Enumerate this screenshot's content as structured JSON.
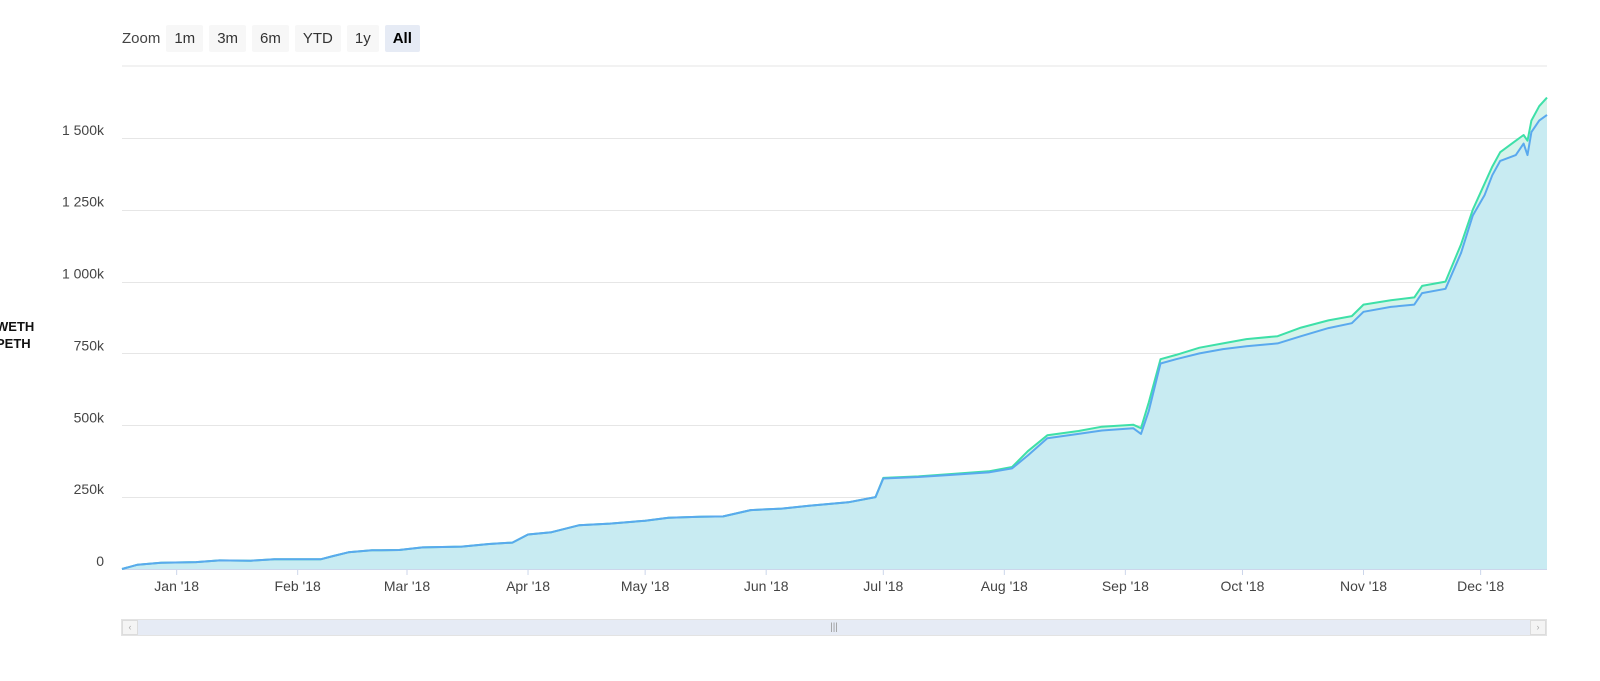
{
  "zoom": {
    "label": "Zoom",
    "buttons": [
      "1m",
      "3m",
      "6m",
      "YTD",
      "1y",
      "All"
    ],
    "active": "All"
  },
  "legend": [
    "WETH",
    "PETH"
  ],
  "navigator": {
    "left_arrow": "‹",
    "right_arrow": "›",
    "grip": "|||"
  },
  "colors": {
    "weth_line": "#3ee0a8",
    "peth_line": "#5aa9ee",
    "area_fill": "#c8ebf2",
    "gap_fill": "#d5f3ea",
    "grid": "#e6e6e6"
  },
  "chart_data": {
    "type": "area",
    "x_axis_type": "datetime",
    "ylim": [
      0,
      1750000
    ],
    "y_ticks": [
      0,
      250000,
      500000,
      750000,
      1000000,
      1250000,
      1500000
    ],
    "y_tick_labels": [
      "0",
      "250k",
      "500k",
      "750k",
      "1 000k",
      "1 250k",
      "1 500k"
    ],
    "x_ticks": [
      "2018-01-01",
      "2018-02-01",
      "2018-03-01",
      "2018-04-01",
      "2018-05-01",
      "2018-06-01",
      "2018-07-01",
      "2018-08-01",
      "2018-09-01",
      "2018-10-01",
      "2018-11-01",
      "2018-12-01"
    ],
    "x_tick_labels": [
      "Jan '18",
      "Feb '18",
      "Mar '18",
      "Apr '18",
      "May '18",
      "Jun '18",
      "Jul '18",
      "Aug '18",
      "Sep '18",
      "Oct '18",
      "Nov '18",
      "Dec '18"
    ],
    "x_range": [
      "2017-12-18",
      "2018-12-18"
    ],
    "grid": true,
    "series": [
      {
        "name": "WETH",
        "points": [
          [
            "2017-12-18",
            0
          ],
          [
            "2017-12-22",
            15000
          ],
          [
            "2017-12-28",
            22000
          ],
          [
            "2018-01-06",
            24000
          ],
          [
            "2018-01-12",
            30000
          ],
          [
            "2018-01-20",
            29000
          ],
          [
            "2018-01-26",
            34000
          ],
          [
            "2018-02-07",
            34000
          ],
          [
            "2018-02-10",
            45000
          ],
          [
            "2018-02-14",
            58000
          ],
          [
            "2018-02-20",
            65000
          ],
          [
            "2018-02-27",
            66000
          ],
          [
            "2018-03-05",
            75000
          ],
          [
            "2018-03-15",
            78000
          ],
          [
            "2018-03-22",
            87000
          ],
          [
            "2018-03-28",
            92000
          ],
          [
            "2018-04-01",
            120000
          ],
          [
            "2018-04-07",
            128000
          ],
          [
            "2018-04-14",
            152000
          ],
          [
            "2018-04-22",
            158000
          ],
          [
            "2018-05-01",
            168000
          ],
          [
            "2018-05-07",
            178000
          ],
          [
            "2018-05-15",
            182000
          ],
          [
            "2018-05-21",
            183000
          ],
          [
            "2018-05-28",
            205000
          ],
          [
            "2018-06-05",
            210000
          ],
          [
            "2018-06-12",
            220000
          ],
          [
            "2018-06-22",
            232000
          ],
          [
            "2018-06-29",
            250000
          ],
          [
            "2018-07-01",
            317000
          ],
          [
            "2018-07-10",
            322000
          ],
          [
            "2018-07-18",
            330000
          ],
          [
            "2018-07-28",
            340000
          ],
          [
            "2018-08-03",
            355000
          ],
          [
            "2018-08-07",
            410000
          ],
          [
            "2018-08-12",
            465000
          ],
          [
            "2018-08-20",
            480000
          ],
          [
            "2018-08-26",
            495000
          ],
          [
            "2018-09-03",
            502000
          ],
          [
            "2018-09-05",
            490000
          ],
          [
            "2018-09-07",
            580000
          ],
          [
            "2018-09-10",
            730000
          ],
          [
            "2018-09-14",
            745000
          ],
          [
            "2018-09-20",
            770000
          ],
          [
            "2018-09-26",
            785000
          ],
          [
            "2018-10-02",
            800000
          ],
          [
            "2018-10-10",
            810000
          ],
          [
            "2018-10-16",
            840000
          ],
          [
            "2018-10-23",
            865000
          ],
          [
            "2018-10-29",
            880000
          ],
          [
            "2018-11-01",
            920000
          ],
          [
            "2018-11-08",
            935000
          ],
          [
            "2018-11-14",
            945000
          ],
          [
            "2018-11-16",
            985000
          ],
          [
            "2018-11-22",
            1000000
          ],
          [
            "2018-11-26",
            1130000
          ],
          [
            "2018-11-29",
            1250000
          ],
          [
            "2018-12-02",
            1340000
          ],
          [
            "2018-12-04",
            1400000
          ],
          [
            "2018-12-06",
            1450000
          ],
          [
            "2018-12-10",
            1490000
          ],
          [
            "2018-12-12",
            1510000
          ],
          [
            "2018-12-13",
            1490000
          ],
          [
            "2018-12-14",
            1560000
          ],
          [
            "2018-12-16",
            1610000
          ],
          [
            "2018-12-18",
            1640000
          ]
        ]
      },
      {
        "name": "PETH",
        "points": [
          [
            "2017-12-18",
            0
          ],
          [
            "2017-12-22",
            15000
          ],
          [
            "2017-12-28",
            22000
          ],
          [
            "2018-01-06",
            24000
          ],
          [
            "2018-01-12",
            30000
          ],
          [
            "2018-01-20",
            29000
          ],
          [
            "2018-01-26",
            34000
          ],
          [
            "2018-02-07",
            34000
          ],
          [
            "2018-02-10",
            45000
          ],
          [
            "2018-02-14",
            58000
          ],
          [
            "2018-02-20",
            65000
          ],
          [
            "2018-02-27",
            66000
          ],
          [
            "2018-03-05",
            75000
          ],
          [
            "2018-03-15",
            78000
          ],
          [
            "2018-03-22",
            87000
          ],
          [
            "2018-03-28",
            92000
          ],
          [
            "2018-04-01",
            120000
          ],
          [
            "2018-04-07",
            128000
          ],
          [
            "2018-04-14",
            152000
          ],
          [
            "2018-04-22",
            158000
          ],
          [
            "2018-05-01",
            168000
          ],
          [
            "2018-05-07",
            178000
          ],
          [
            "2018-05-15",
            182000
          ],
          [
            "2018-05-21",
            183000
          ],
          [
            "2018-05-28",
            205000
          ],
          [
            "2018-06-05",
            210000
          ],
          [
            "2018-06-12",
            220000
          ],
          [
            "2018-06-22",
            232000
          ],
          [
            "2018-06-29",
            250000
          ],
          [
            "2018-07-01",
            315000
          ],
          [
            "2018-07-10",
            320000
          ],
          [
            "2018-07-18",
            327000
          ],
          [
            "2018-07-28",
            336000
          ],
          [
            "2018-08-03",
            350000
          ],
          [
            "2018-08-07",
            395000
          ],
          [
            "2018-08-12",
            455000
          ],
          [
            "2018-08-20",
            470000
          ],
          [
            "2018-08-26",
            482000
          ],
          [
            "2018-09-03",
            490000
          ],
          [
            "2018-09-05",
            470000
          ],
          [
            "2018-09-07",
            550000
          ],
          [
            "2018-09-10",
            715000
          ],
          [
            "2018-09-14",
            730000
          ],
          [
            "2018-09-20",
            750000
          ],
          [
            "2018-09-26",
            765000
          ],
          [
            "2018-10-02",
            775000
          ],
          [
            "2018-10-10",
            785000
          ],
          [
            "2018-10-16",
            810000
          ],
          [
            "2018-10-23",
            838000
          ],
          [
            "2018-10-29",
            855000
          ],
          [
            "2018-11-01",
            895000
          ],
          [
            "2018-11-08",
            912000
          ],
          [
            "2018-11-14",
            920000
          ],
          [
            "2018-11-16",
            960000
          ],
          [
            "2018-11-22",
            975000
          ],
          [
            "2018-11-26",
            1100000
          ],
          [
            "2018-11-29",
            1230000
          ],
          [
            "2018-12-02",
            1300000
          ],
          [
            "2018-12-04",
            1370000
          ],
          [
            "2018-12-06",
            1420000
          ],
          [
            "2018-12-10",
            1440000
          ],
          [
            "2018-12-12",
            1480000
          ],
          [
            "2018-12-13",
            1440000
          ],
          [
            "2018-12-14",
            1520000
          ],
          [
            "2018-12-16",
            1560000
          ],
          [
            "2018-12-18",
            1580000
          ]
        ]
      }
    ]
  }
}
